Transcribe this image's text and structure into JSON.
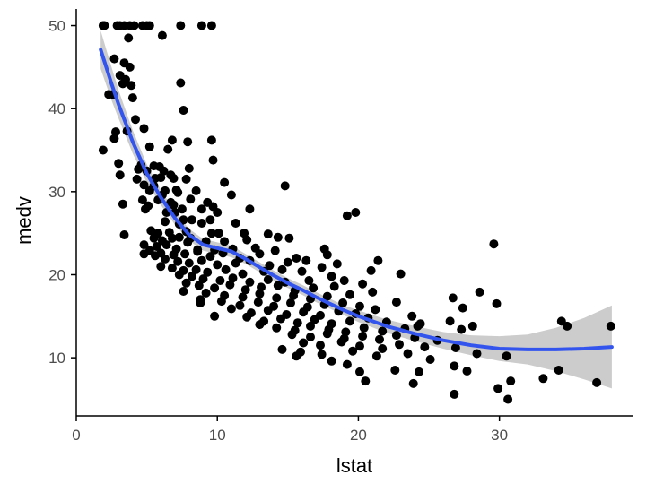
{
  "chart_data": {
    "type": "scatter",
    "xlabel": "lstat",
    "ylabel": "medv",
    "xlim": [
      0,
      39.5
    ],
    "ylim": [
      3,
      52
    ],
    "x_ticks": [
      0,
      10,
      20,
      30
    ],
    "y_ticks": [
      10,
      20,
      30,
      40,
      50
    ],
    "grid": false,
    "point_color": "#000000",
    "smooth_color": "#3355ee",
    "ribbon_color": "#cccccc",
    "points": [
      [
        1.9,
        50
      ],
      [
        2.0,
        50
      ],
      [
        2.9,
        50
      ],
      [
        3.1,
        50
      ],
      [
        3.4,
        50
      ],
      [
        3.8,
        50
      ],
      [
        4.1,
        50
      ],
      [
        4.7,
        50
      ],
      [
        5.0,
        50
      ],
      [
        5.2,
        50
      ],
      [
        7.4,
        50
      ],
      [
        8.9,
        50
      ],
      [
        9.6,
        50
      ],
      [
        6.1,
        48.8
      ],
      [
        3.7,
        48.5
      ],
      [
        2.7,
        46.0
      ],
      [
        3.4,
        45.5
      ],
      [
        3.8,
        45.0
      ],
      [
        3.1,
        44.0
      ],
      [
        3.5,
        43.5
      ],
      [
        7.4,
        43.1
      ],
      [
        3.3,
        43.0
      ],
      [
        3.9,
        42.8
      ],
      [
        2.6,
        41.7
      ],
      [
        4.0,
        41.3
      ],
      [
        2.3,
        41.7
      ],
      [
        7.6,
        39.8
      ],
      [
        4.2,
        38.7
      ],
      [
        4.8,
        37.6
      ],
      [
        3.6,
        37.3
      ],
      [
        2.8,
        37.2
      ],
      [
        2.7,
        36.4
      ],
      [
        6.8,
        36.2
      ],
      [
        7.9,
        36.0
      ],
      [
        9.6,
        36.2
      ],
      [
        1.9,
        35.0
      ],
      [
        5.2,
        35.4
      ],
      [
        6.5,
        35.1
      ],
      [
        9.7,
        33.8
      ],
      [
        3.0,
        33.4
      ],
      [
        4.6,
        33.2
      ],
      [
        5.5,
        33.1
      ],
      [
        5.9,
        33.0
      ],
      [
        4.4,
        32.7
      ],
      [
        6.2,
        32.5
      ],
      [
        5.0,
        32.5
      ],
      [
        6.7,
        32.0
      ],
      [
        8.0,
        32.8
      ],
      [
        3.1,
        32.0
      ],
      [
        4.3,
        31.5
      ],
      [
        5.6,
        31.6
      ],
      [
        6.0,
        31.7
      ],
      [
        6.9,
        31.6
      ],
      [
        7.8,
        31.5
      ],
      [
        4.8,
        30.8
      ],
      [
        5.5,
        30.7
      ],
      [
        7.1,
        30.2
      ],
      [
        5.2,
        30.1
      ],
      [
        6.3,
        30.1
      ],
      [
        8.5,
        30.1
      ],
      [
        10.5,
        31.1
      ],
      [
        14.8,
        30.7
      ],
      [
        6.1,
        29.6
      ],
      [
        7.2,
        29.9
      ],
      [
        8.1,
        29.1
      ],
      [
        4.7,
        29.0
      ],
      [
        5.8,
        29.0
      ],
      [
        6.7,
        28.7
      ],
      [
        9.3,
        28.7
      ],
      [
        3.3,
        28.5
      ],
      [
        5.1,
        28.3
      ],
      [
        6.9,
        28.4
      ],
      [
        9.7,
        28.2
      ],
      [
        11.0,
        29.6
      ],
      [
        4.9,
        27.9
      ],
      [
        6.4,
        27.5
      ],
      [
        7.0,
        27.5
      ],
      [
        7.5,
        27.9
      ],
      [
        8.9,
        27.9
      ],
      [
        10.0,
        27.5
      ],
      [
        12.3,
        27.9
      ],
      [
        19.8,
        27.5
      ],
      [
        19.2,
        27.1
      ],
      [
        7.6,
        26.6
      ],
      [
        8.2,
        26.6
      ],
      [
        9.5,
        26.6
      ],
      [
        6.3,
        26.4
      ],
      [
        7.3,
        26.1
      ],
      [
        8.9,
        26.2
      ],
      [
        11.3,
        26.2
      ],
      [
        5.3,
        25.3
      ],
      [
        5.8,
        25.0
      ],
      [
        6.6,
        25.1
      ],
      [
        7.8,
        25.2
      ],
      [
        9.6,
        25.0
      ],
      [
        10.1,
        25.0
      ],
      [
        11.9,
        25.0
      ],
      [
        13.6,
        24.9
      ],
      [
        3.4,
        24.8
      ],
      [
        5.5,
        24.4
      ],
      [
        6.1,
        24.1
      ],
      [
        6.8,
        24.4
      ],
      [
        7.3,
        24.5
      ],
      [
        8.1,
        24.4
      ],
      [
        9.2,
        24.0
      ],
      [
        10.5,
        24.0
      ],
      [
        12.1,
        24.2
      ],
      [
        14.3,
        24.5
      ],
      [
        15.1,
        24.4
      ],
      [
        4.8,
        23.6
      ],
      [
        5.7,
        23.4
      ],
      [
        6.4,
        23.6
      ],
      [
        7.1,
        23.1
      ],
      [
        7.9,
        23.9
      ],
      [
        8.6,
        23.0
      ],
      [
        9.8,
        23.0
      ],
      [
        11.1,
        23.1
      ],
      [
        12.7,
        23.2
      ],
      [
        14.1,
        22.9
      ],
      [
        17.6,
        23.1
      ],
      [
        5.2,
        22.9
      ],
      [
        6.0,
        22.6
      ],
      [
        6.9,
        22.4
      ],
      [
        7.7,
        22.5
      ],
      [
        8.6,
        22.8
      ],
      [
        9.5,
        22.2
      ],
      [
        10.4,
        22.6
      ],
      [
        11.6,
        22.0
      ],
      [
        13.0,
        22.5
      ],
      [
        15.6,
        22.0
      ],
      [
        17.8,
        22.4
      ],
      [
        4.8,
        22.5
      ],
      [
        5.6,
        22.3
      ],
      [
        6.3,
        21.9
      ],
      [
        7.2,
        21.6
      ],
      [
        8.0,
        21.4
      ],
      [
        8.9,
        21.7
      ],
      [
        10.0,
        21.2
      ],
      [
        11.3,
        21.4
      ],
      [
        12.3,
        21.7
      ],
      [
        13.7,
        21.1
      ],
      [
        15.0,
        21.5
      ],
      [
        16.3,
        21.7
      ],
      [
        18.5,
        21.3
      ],
      [
        21.4,
        21.7
      ],
      [
        6.0,
        21.0
      ],
      [
        6.8,
        20.8
      ],
      [
        7.6,
        20.5
      ],
      [
        8.5,
        20.6
      ],
      [
        9.3,
        20.3
      ],
      [
        10.6,
        20.6
      ],
      [
        11.8,
        20.1
      ],
      [
        13.3,
        20.4
      ],
      [
        14.6,
        20.6
      ],
      [
        16.0,
        20.4
      ],
      [
        17.4,
        20.9
      ],
      [
        20.9,
        20.5
      ],
      [
        23.0,
        20.1
      ],
      [
        7.3,
        20.0
      ],
      [
        8.2,
        19.8
      ],
      [
        9.0,
        19.5
      ],
      [
        10.2,
        19.3
      ],
      [
        11.1,
        19.6
      ],
      [
        12.3,
        19.1
      ],
      [
        13.6,
        19.4
      ],
      [
        14.8,
        19.1
      ],
      [
        16.5,
        19.3
      ],
      [
        18.1,
        19.8
      ],
      [
        19.0,
        19.3
      ],
      [
        7.8,
        19.0
      ],
      [
        8.7,
        18.7
      ],
      [
        9.8,
        18.4
      ],
      [
        10.9,
        18.8
      ],
      [
        12.0,
        18.2
      ],
      [
        13.1,
        18.5
      ],
      [
        14.3,
        18.7
      ],
      [
        15.5,
        18.1
      ],
      [
        16.8,
        18.4
      ],
      [
        18.3,
        18.6
      ],
      [
        20.3,
        18.9
      ],
      [
        7.6,
        18.0
      ],
      [
        9.2,
        17.8
      ],
      [
        10.5,
        17.5
      ],
      [
        11.8,
        17.3
      ],
      [
        13.0,
        17.7
      ],
      [
        14.2,
        17.2
      ],
      [
        15.4,
        17.5
      ],
      [
        16.6,
        17.1
      ],
      [
        17.8,
        17.4
      ],
      [
        19.4,
        17.6
      ],
      [
        21.0,
        17.9
      ],
      [
        26.7,
        17.2
      ],
      [
        28.6,
        17.9
      ],
      [
        8.8,
        17.0
      ],
      [
        10.3,
        16.8
      ],
      [
        11.6,
        16.3
      ],
      [
        12.9,
        16.7
      ],
      [
        14.0,
        16.2
      ],
      [
        15.2,
        16.6
      ],
      [
        16.4,
        16.1
      ],
      [
        17.6,
        16.4
      ],
      [
        18.9,
        16.6
      ],
      [
        20.1,
        16.2
      ],
      [
        22.7,
        16.7
      ],
      [
        27.4,
        16.0
      ],
      [
        29.8,
        16.5
      ],
      [
        8.8,
        16.6
      ],
      [
        11.0,
        15.9
      ],
      [
        12.4,
        15.4
      ],
      [
        13.6,
        15.7
      ],
      [
        14.9,
        15.2
      ],
      [
        16.1,
        15.5
      ],
      [
        17.3,
        15.1
      ],
      [
        18.6,
        15.6
      ],
      [
        19.8,
        15.3
      ],
      [
        21.2,
        15.8
      ],
      [
        23.8,
        15.0
      ],
      [
        9.8,
        15.0
      ],
      [
        12.1,
        14.9
      ],
      [
        13.3,
        14.4
      ],
      [
        14.5,
        14.7
      ],
      [
        15.7,
        14.2
      ],
      [
        16.9,
        14.6
      ],
      [
        18.1,
        14.1
      ],
      [
        19.4,
        14.4
      ],
      [
        20.7,
        14.8
      ],
      [
        22.0,
        14.3
      ],
      [
        24.4,
        14.1
      ],
      [
        26.5,
        14.4
      ],
      [
        34.4,
        14.4
      ],
      [
        13.0,
        14.0
      ],
      [
        14.2,
        13.6
      ],
      [
        15.5,
        13.3
      ],
      [
        16.6,
        13.8
      ],
      [
        17.9,
        13.4
      ],
      [
        19.1,
        13.1
      ],
      [
        20.4,
        13.6
      ],
      [
        21.7,
        13.2
      ],
      [
        23.3,
        13.5
      ],
      [
        27.3,
        13.4
      ],
      [
        28.1,
        13.8
      ],
      [
        37.9,
        13.8
      ],
      [
        15.3,
        12.8
      ],
      [
        16.6,
        12.5
      ],
      [
        17.8,
        12.9
      ],
      [
        19.0,
        12.3
      ],
      [
        20.3,
        12.6
      ],
      [
        21.5,
        12.2
      ],
      [
        22.7,
        12.7
      ],
      [
        24.0,
        12.4
      ],
      [
        25.6,
        12.1
      ],
      [
        16.1,
        11.8
      ],
      [
        17.3,
        11.5
      ],
      [
        18.8,
        11.9
      ],
      [
        20.1,
        11.4
      ],
      [
        21.7,
        11.1
      ],
      [
        22.9,
        11.6
      ],
      [
        24.7,
        11.3
      ],
      [
        26.9,
        11.2
      ],
      [
        14.6,
        11.0
      ],
      [
        15.9,
        10.7
      ],
      [
        17.4,
        10.4
      ],
      [
        19.6,
        10.8
      ],
      [
        21.3,
        10.2
      ],
      [
        23.5,
        10.5
      ],
      [
        25.1,
        9.8
      ],
      [
        28.4,
        10.5
      ],
      [
        30.5,
        10.2
      ],
      [
        15.6,
        10.2
      ],
      [
        18.1,
        9.6
      ],
      [
        19.2,
        9.2
      ],
      [
        22.6,
        8.5
      ],
      [
        24.3,
        8.3
      ],
      [
        26.8,
        9.0
      ],
      [
        27.7,
        8.4
      ],
      [
        33.1,
        7.5
      ],
      [
        34.2,
        8.5
      ],
      [
        20.1,
        8.3
      ],
      [
        20.5,
        7.2
      ],
      [
        23.9,
        6.9
      ],
      [
        30.8,
        7.2
      ],
      [
        29.9,
        6.3
      ],
      [
        26.8,
        5.6
      ],
      [
        30.6,
        5.0
      ],
      [
        36.9,
        7.0
      ],
      [
        29.6,
        23.7
      ],
      [
        24.2,
        13.8
      ],
      [
        34.8,
        13.8
      ]
    ],
    "smooth_curve": [
      [
        1.73,
        47.1
      ],
      [
        2.5,
        43.0
      ],
      [
        3.0,
        40.5
      ],
      [
        4.0,
        36.0
      ],
      [
        5.0,
        32.2
      ],
      [
        6.0,
        29.3
      ],
      [
        7.0,
        26.8
      ],
      [
        8.0,
        24.8
      ],
      [
        9.0,
        23.6
      ],
      [
        10.0,
        23.2
      ],
      [
        11.0,
        22.8
      ],
      [
        12.0,
        21.9
      ],
      [
        13.0,
        20.9
      ],
      [
        14.0,
        19.9
      ],
      [
        15.0,
        19.0
      ],
      [
        16.0,
        18.2
      ],
      [
        17.0,
        17.3
      ],
      [
        18.0,
        16.5
      ],
      [
        19.0,
        15.7
      ],
      [
        20.0,
        15.0
      ],
      [
        22.0,
        13.8
      ],
      [
        24.0,
        12.9
      ],
      [
        26.0,
        12.1
      ],
      [
        28.0,
        11.5
      ],
      [
        30.0,
        11.1
      ],
      [
        32.0,
        11.0
      ],
      [
        34.0,
        11.0
      ],
      [
        36.0,
        11.1
      ],
      [
        37.97,
        11.3
      ]
    ],
    "ribbon_upper": [
      [
        1.73,
        49.4
      ],
      [
        2.5,
        45.0
      ],
      [
        3.0,
        42.2
      ],
      [
        4.0,
        37.4
      ],
      [
        5.0,
        33.3
      ],
      [
        6.0,
        30.2
      ],
      [
        7.0,
        27.6
      ],
      [
        8.0,
        25.5
      ],
      [
        9.0,
        24.3
      ],
      [
        10.0,
        23.9
      ],
      [
        11.0,
        23.5
      ],
      [
        12.0,
        22.5
      ],
      [
        13.0,
        21.5
      ],
      [
        14.0,
        20.5
      ],
      [
        15.0,
        19.6
      ],
      [
        16.0,
        18.8
      ],
      [
        17.0,
        17.9
      ],
      [
        18.0,
        17.1
      ],
      [
        19.0,
        16.3
      ],
      [
        20.0,
        15.7
      ],
      [
        22.0,
        14.6
      ],
      [
        24.0,
        13.8
      ],
      [
        26.0,
        13.1
      ],
      [
        28.0,
        12.7
      ],
      [
        30.0,
        12.6
      ],
      [
        32.0,
        12.8
      ],
      [
        34.0,
        13.6
      ],
      [
        36.0,
        14.8
      ],
      [
        37.97,
        16.3
      ]
    ],
    "ribbon_lower": [
      [
        1.73,
        44.8
      ],
      [
        2.5,
        41.0
      ],
      [
        3.0,
        38.8
      ],
      [
        4.0,
        34.6
      ],
      [
        5.0,
        31.1
      ],
      [
        6.0,
        28.4
      ],
      [
        7.0,
        26.0
      ],
      [
        8.0,
        24.1
      ],
      [
        9.0,
        22.9
      ],
      [
        10.0,
        22.5
      ],
      [
        11.0,
        22.1
      ],
      [
        12.0,
        21.3
      ],
      [
        13.0,
        20.3
      ],
      [
        14.0,
        19.3
      ],
      [
        15.0,
        18.4
      ],
      [
        16.0,
        17.6
      ],
      [
        17.0,
        16.7
      ],
      [
        18.0,
        15.9
      ],
      [
        19.0,
        15.1
      ],
      [
        20.0,
        14.3
      ],
      [
        22.0,
        13.0
      ],
      [
        24.0,
        12.0
      ],
      [
        26.0,
        11.1
      ],
      [
        28.0,
        10.3
      ],
      [
        30.0,
        9.6
      ],
      [
        32.0,
        9.2
      ],
      [
        34.0,
        8.4
      ],
      [
        36.0,
        7.4
      ],
      [
        37.97,
        6.3
      ]
    ]
  }
}
